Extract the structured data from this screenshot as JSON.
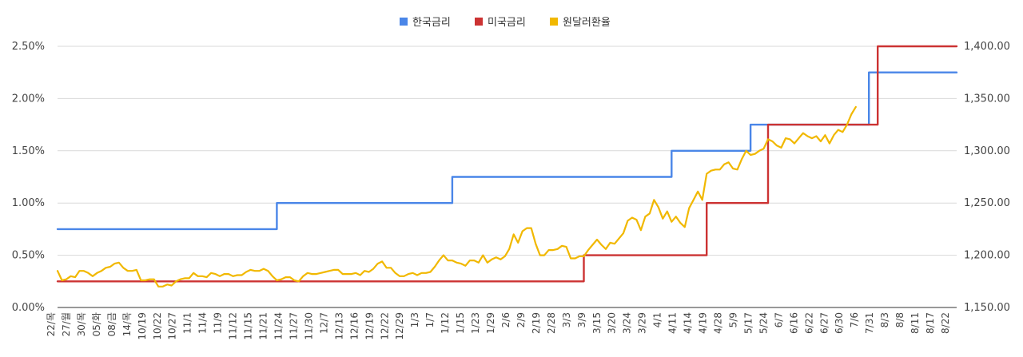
{
  "chart_data": {
    "type": "line",
    "legend_position": "top-center",
    "grid": true,
    "left_axis": {
      "min": 0,
      "max": 2.5,
      "step": 0.5,
      "tick_labels": [
        "0.00%",
        "0.50%",
        "1.00%",
        "1.50%",
        "2.00%",
        "2.50%"
      ]
    },
    "right_axis": {
      "min": 1150,
      "max": 1400,
      "step": 50,
      "tick_labels": [
        "1,150.00",
        "1,200.00",
        "1,250.00",
        "1,300.00",
        "1,350.00",
        "1,400.00"
      ]
    },
    "x_labels": [
      "22/목",
      "27/월",
      "30/목",
      "05/화",
      "08/금",
      "14/목",
      "10/19",
      "10/22",
      "10/27",
      "11/1",
      "11/4",
      "11/9",
      "11/12",
      "11/15",
      "11/21",
      "11/24",
      "11/27",
      "11/30",
      "12/7",
      "12/13",
      "12/16",
      "12/19",
      "12/22",
      "12/29",
      "1/3",
      "1/7",
      "1/12",
      "1/15",
      "1/23",
      "1/29",
      "2/6",
      "2/9",
      "2/19",
      "2/28",
      "3/3",
      "3/9",
      "3/15",
      "3/20",
      "3/24",
      "3/29",
      "4/1",
      "4/11",
      "4/14",
      "4/19",
      "4/28",
      "5/9",
      "5/17",
      "5/24",
      "6/7",
      "6/16",
      "6/22",
      "6/27",
      "6/30",
      "7/6",
      "7/31",
      "8/3",
      "8/8",
      "8/11",
      "8/17",
      "8/22"
    ],
    "series": [
      {
        "name": "한국금리",
        "color": "#4a86e8",
        "axis": "left",
        "shape": "step",
        "values": [
          [
            0,
            0.75
          ],
          [
            50,
            0.75
          ],
          [
            50,
            1.0
          ],
          [
            90,
            1.0
          ],
          [
            90,
            1.25
          ],
          [
            140,
            1.25
          ],
          [
            140,
            1.5
          ],
          [
            158,
            1.5
          ],
          [
            158,
            1.75
          ],
          [
            185,
            1.75
          ],
          [
            185,
            2.25
          ],
          [
            205,
            2.25
          ]
        ]
      },
      {
        "name": "미국금리",
        "color": "#cc3333",
        "axis": "left",
        "shape": "step",
        "values": [
          [
            0,
            0.25
          ],
          [
            120,
            0.25
          ],
          [
            120,
            0.5
          ],
          [
            148,
            0.5
          ],
          [
            148,
            1.0
          ],
          [
            162,
            1.0
          ],
          [
            162,
            1.75
          ],
          [
            187,
            1.75
          ],
          [
            187,
            2.5
          ],
          [
            205,
            2.5
          ]
        ]
      },
      {
        "name": "원달러환율",
        "color": "#f1b800",
        "axis": "right",
        "shape": "line",
        "values": [
          1185,
          1176,
          1177,
          1180,
          1179,
          1185,
          1185,
          1183,
          1180,
          1183,
          1185,
          1188,
          1189,
          1192,
          1193,
          1188,
          1185,
          1185,
          1186,
          1176,
          1176,
          1177,
          1177,
          1170,
          1170,
          1172,
          1171,
          1175,
          1177,
          1178,
          1178,
          1183,
          1180,
          1180,
          1179,
          1183,
          1182,
          1180,
          1182,
          1182,
          1180,
          1181,
          1181,
          1184,
          1186,
          1185,
          1185,
          1187,
          1185,
          1180,
          1176,
          1177,
          1179,
          1179,
          1176,
          1175,
          1180,
          1183,
          1182,
          1182,
          1183,
          1184,
          1185,
          1186,
          1186,
          1182,
          1182,
          1182,
          1183,
          1181,
          1185,
          1184,
          1187,
          1192,
          1194,
          1188,
          1188,
          1183,
          1180,
          1180,
          1182,
          1183,
          1181,
          1183,
          1183,
          1184,
          1189,
          1195,
          1200,
          1195,
          1195,
          1193,
          1192,
          1190,
          1195,
          1195,
          1193,
          1200,
          1193,
          1196,
          1198,
          1196,
          1199,
          1206,
          1220,
          1212,
          1223,
          1226,
          1226,
          1211,
          1200,
          1200,
          1205,
          1205,
          1206,
          1209,
          1208,
          1197,
          1197,
          1199,
          1199,
          1205,
          1210,
          1215,
          1210,
          1206,
          1212,
          1211,
          1216,
          1221,
          1233,
          1236,
          1234,
          1224,
          1237,
          1240,
          1253,
          1246,
          1235,
          1242,
          1232,
          1237,
          1231,
          1227,
          1245,
          1253,
          1261,
          1253,
          1278,
          1281,
          1282,
          1282,
          1287,
          1289,
          1283,
          1282,
          1292,
          1300,
          1296,
          1297,
          1300,
          1302,
          1311,
          1309,
          1305,
          1303,
          1312,
          1311,
          1307,
          1312,
          1317,
          1314,
          1312,
          1314,
          1309,
          1315,
          1307,
          1315,
          1320,
          1318,
          1325,
          1335,
          1342
        ]
      }
    ]
  }
}
